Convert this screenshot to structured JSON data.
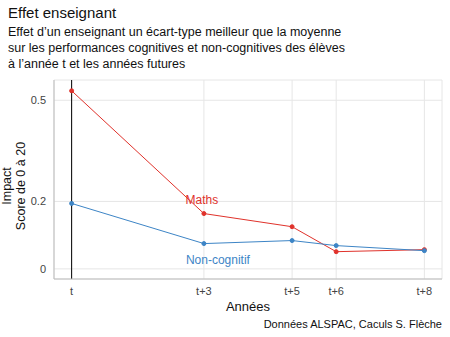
{
  "chart_data": {
    "type": "line",
    "title": "Effet enseignant",
    "subtitle": [
      "Effet d’un enseignant un écart-type meilleur que la moyenne",
      "sur les performances cognitives et non-cognitives des élèves",
      "à l’année t et les années futures"
    ],
    "y_label": [
      "Impact",
      "Score de 0 à 20"
    ],
    "x_label": "Années",
    "caption": "Données ALSPAC, Caculs S. Flèche",
    "x": [
      0,
      3,
      5,
      6,
      8
    ],
    "xlim": [
      -0.4,
      8.4
    ],
    "xticks": [
      {
        "value": 0,
        "label": "t"
      },
      {
        "value": 3,
        "label": "t+3"
      },
      {
        "value": 5,
        "label": "t+5"
      },
      {
        "value": 6,
        "label": "t+6"
      },
      {
        "value": 8,
        "label": "t+8"
      }
    ],
    "ylim": [
      -0.03,
      0.56
    ],
    "yticks": [
      0,
      0.2,
      0.5
    ],
    "grid": true,
    "marker": "circle",
    "series": [
      {
        "name": "Maths",
        "color": "#e0322b",
        "values": [
          0.528,
          0.164,
          0.125,
          0.051,
          0.057
        ]
      },
      {
        "name": "Non-cognitif",
        "color": "#3d85c6",
        "values": [
          0.194,
          0.075,
          0.084,
          0.069,
          0.054
        ]
      }
    ]
  }
}
